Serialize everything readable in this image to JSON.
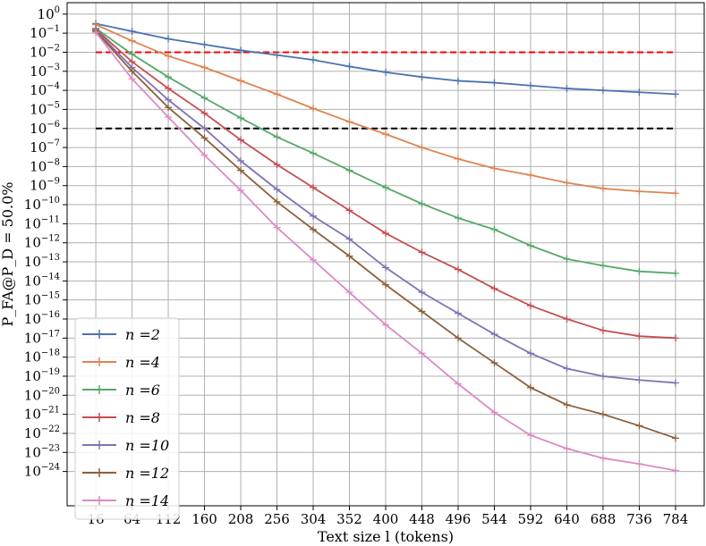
{
  "chart_data": {
    "type": "line",
    "title": "",
    "xlabel": "Text size l (tokens)",
    "ylabel": "P_FA@P_D = 50.0%",
    "y_scale": "log",
    "xlim": [
      -22,
      822
    ],
    "ylim_exponents": [
      -25.8,
      0.6
    ],
    "x_ticks": [
      16,
      64,
      112,
      160,
      208,
      256,
      304,
      352,
      400,
      448,
      496,
      544,
      592,
      640,
      688,
      736,
      784
    ],
    "y_tick_exponents": [
      0,
      -1,
      -2,
      -3,
      -4,
      -5,
      -6,
      -7,
      -8,
      -9,
      -10,
      -11,
      -12,
      -13,
      -14,
      -15,
      -16,
      -17,
      -18,
      -19,
      -20,
      -21,
      -22,
      -23,
      -24
    ],
    "grid": true,
    "legend_position": "bottom-left",
    "reference_lines": [
      {
        "y": 0.01,
        "color": "#ff0000",
        "style": "dashed"
      },
      {
        "y": 1e-06,
        "color": "#000000",
        "style": "dashed"
      }
    ],
    "series": [
      {
        "name": "n =2",
        "color": "#4c72b0",
        "x": [
          16,
          64,
          112,
          160,
          208,
          256,
          304,
          352,
          400,
          448,
          496,
          544,
          592,
          640,
          688,
          736,
          784
        ],
        "log10_y": [
          -0.5,
          -0.9,
          -1.3,
          -1.6,
          -1.9,
          -2.15,
          -2.4,
          -2.75,
          -3.05,
          -3.3,
          -3.5,
          -3.6,
          -3.75,
          -3.9,
          -4.0,
          -4.1,
          -4.2
        ]
      },
      {
        "name": "n =4",
        "color": "#dd8452",
        "x": [
          16,
          64,
          112,
          160,
          208,
          256,
          304,
          352,
          400,
          448,
          496,
          544,
          592,
          640,
          688,
          736,
          784
        ],
        "log10_y": [
          -0.55,
          -1.4,
          -2.2,
          -2.8,
          -3.5,
          -4.2,
          -4.95,
          -5.65,
          -6.3,
          -7.0,
          -7.6,
          -8.1,
          -8.45,
          -8.85,
          -9.15,
          -9.3,
          -9.4
        ]
      },
      {
        "name": "n =6",
        "color": "#55a868",
        "x": [
          16,
          64,
          112,
          160,
          208,
          256,
          304,
          352,
          400,
          448,
          496,
          544,
          592,
          640,
          688,
          736,
          784
        ],
        "log10_y": [
          -0.75,
          -2.1,
          -3.3,
          -4.4,
          -5.45,
          -6.45,
          -7.3,
          -8.2,
          -9.1,
          -9.95,
          -10.7,
          -11.3,
          -12.15,
          -12.85,
          -13.2,
          -13.5,
          -13.6
        ]
      },
      {
        "name": "n =8",
        "color": "#c44e52",
        "x": [
          16,
          64,
          112,
          160,
          208,
          256,
          304,
          352,
          400,
          448,
          496,
          544,
          592,
          640,
          688,
          736,
          784
        ],
        "log10_y": [
          -0.8,
          -2.5,
          -3.9,
          -5.2,
          -6.6,
          -7.9,
          -9.1,
          -10.3,
          -11.5,
          -12.5,
          -13.4,
          -14.4,
          -15.3,
          -16.0,
          -16.6,
          -16.9,
          -17.0
        ]
      },
      {
        "name": "n =10",
        "color": "#8172b3",
        "x": [
          16,
          64,
          112,
          160,
          208,
          256,
          304,
          352,
          400,
          448,
          496,
          544,
          592,
          640,
          688,
          736,
          784
        ],
        "log10_y": [
          -0.85,
          -2.8,
          -4.5,
          -6.0,
          -7.7,
          -9.2,
          -10.6,
          -11.8,
          -13.3,
          -14.6,
          -15.7,
          -16.8,
          -17.8,
          -18.6,
          -19.0,
          -19.2,
          -19.35
        ]
      },
      {
        "name": "n =12",
        "color": "#8c613c",
        "x": [
          16,
          64,
          112,
          160,
          208,
          256,
          304,
          352,
          400,
          448,
          496,
          544,
          592,
          640,
          688,
          736,
          784
        ],
        "log10_y": [
          -0.9,
          -3.0,
          -4.9,
          -6.5,
          -8.2,
          -9.85,
          -11.3,
          -12.7,
          -14.2,
          -15.6,
          -17.0,
          -18.3,
          -19.6,
          -20.5,
          -21.0,
          -21.6,
          -22.25
        ]
      },
      {
        "name": "n =14",
        "color": "#da8bc3",
        "x": [
          16,
          64,
          112,
          160,
          208,
          256,
          304,
          352,
          400,
          448,
          496,
          544,
          592,
          640,
          688,
          736,
          784
        ],
        "log10_y": [
          -0.95,
          -3.4,
          -5.4,
          -7.4,
          -9.25,
          -11.2,
          -12.9,
          -14.6,
          -16.3,
          -17.8,
          -19.4,
          -20.9,
          -22.1,
          -22.8,
          -23.3,
          -23.6,
          -23.95
        ]
      }
    ]
  }
}
